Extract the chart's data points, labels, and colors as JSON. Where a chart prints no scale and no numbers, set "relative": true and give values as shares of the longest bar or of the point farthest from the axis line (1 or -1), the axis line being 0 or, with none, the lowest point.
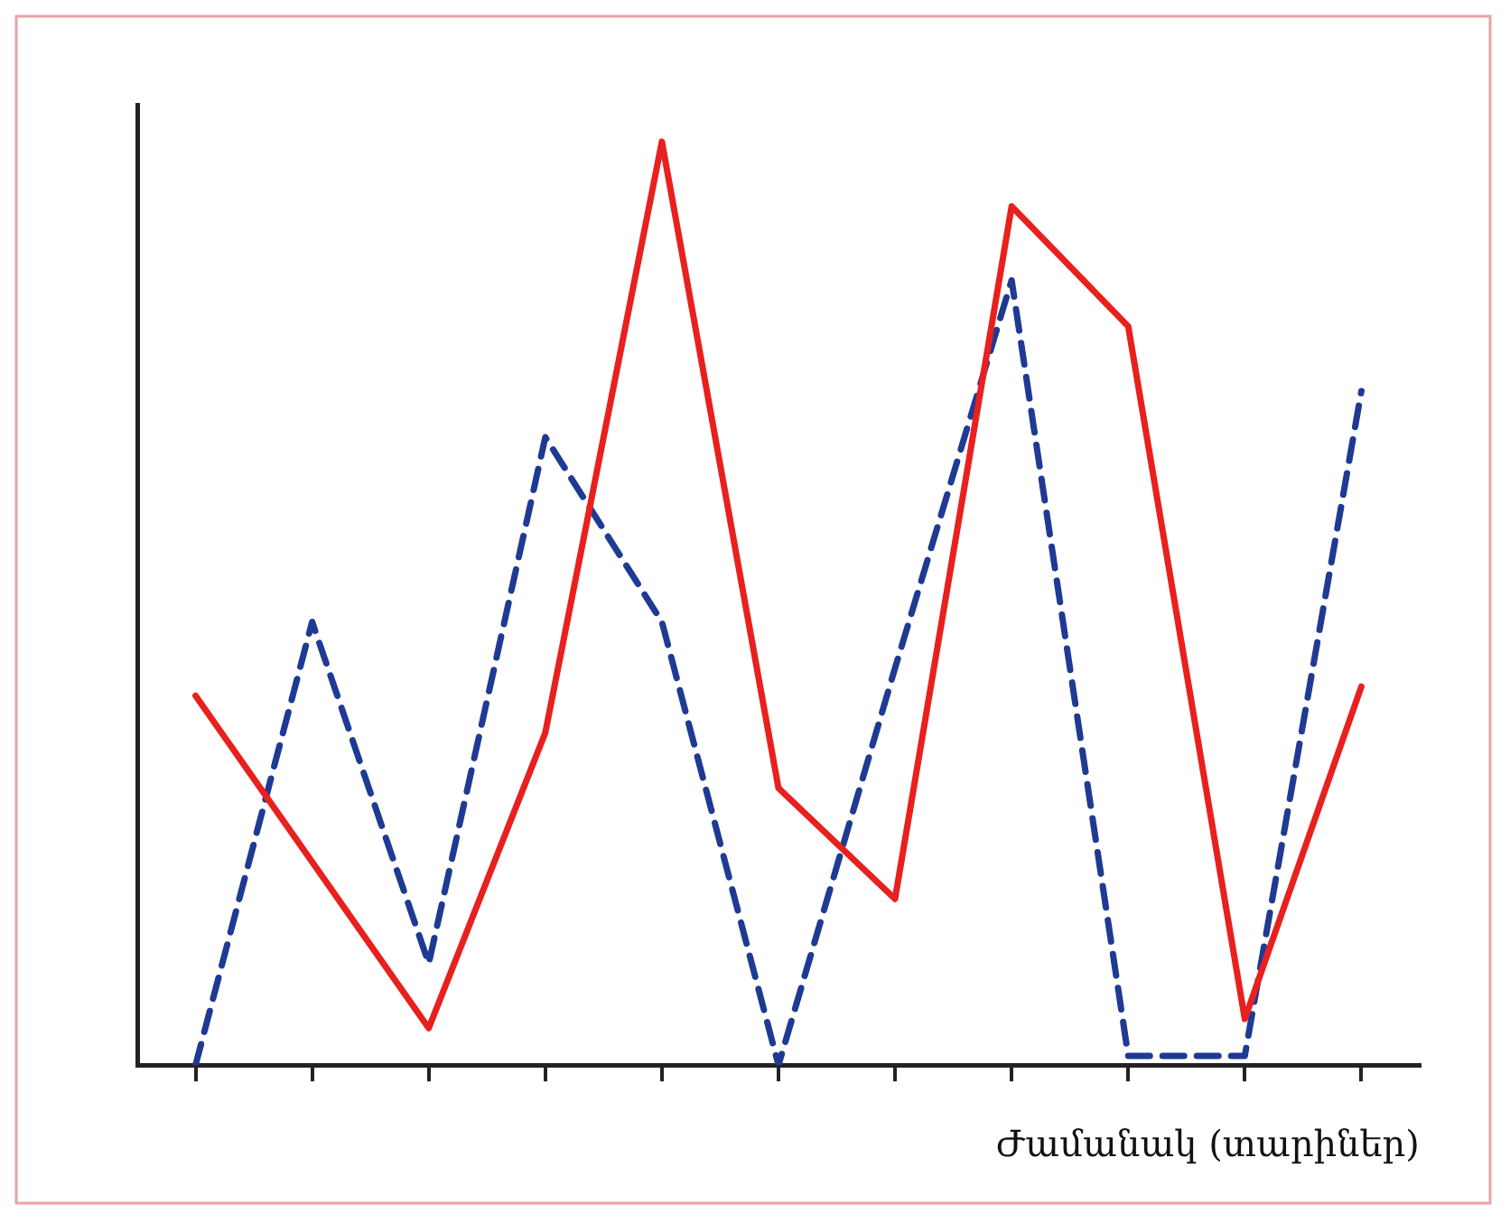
{
  "chart_data": {
    "type": "line",
    "xlabel": "Ժամանակ (տարիներ)",
    "relative": true,
    "grid": false,
    "legend": false,
    "marker": "none",
    "categories": [
      null,
      null,
      null,
      null,
      null,
      null,
      null,
      null,
      null,
      null,
      null
    ],
    "series": [
      {
        "color": "#e8201e",
        "line_style": "solid",
        "values": [
          0.4,
          0.22,
          0.04,
          0.36,
          1,
          0.3,
          0.18,
          0.93,
          0.8,
          0.05,
          0.41
        ]
      },
      {
        "color": "#1f3a93",
        "line_style": "dashed",
        "values": [
          0,
          0.48,
          0.11,
          0.68,
          0.48,
          0,
          0.43,
          0.85,
          0.01,
          0.01,
          0.73
        ]
      }
    ]
  }
}
